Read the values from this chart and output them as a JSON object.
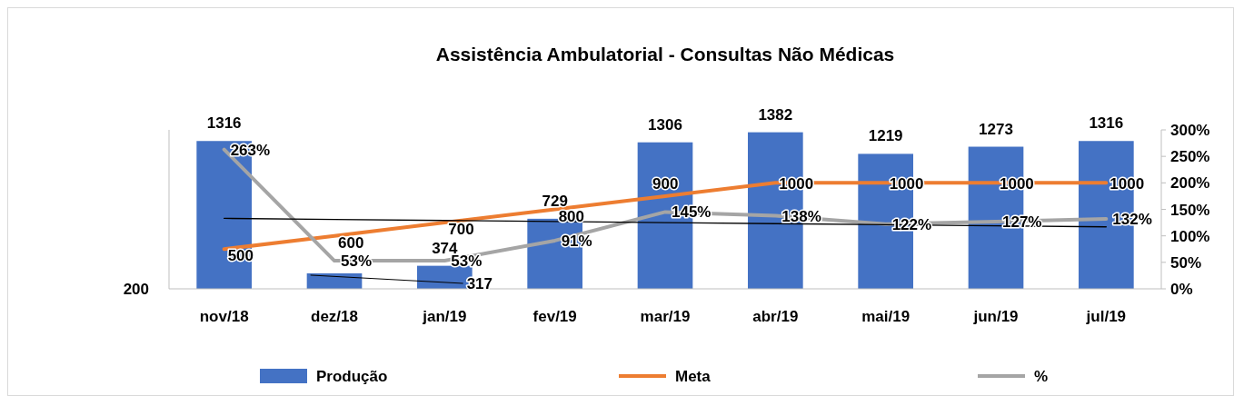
{
  "chart_data": {
    "type": "bar",
    "title": "Assistência Ambulatorial - Consultas Não Médicas",
    "categories": [
      "nov/18",
      "dez/18",
      "jan/19",
      "fev/19",
      "mar/19",
      "abr/19",
      "mai/19",
      "jun/19",
      "jul/19"
    ],
    "series": [
      {
        "name": "Produção",
        "color": "#4472c4",
        "values": [
          1316,
          317,
          374,
          729,
          1306,
          1382,
          1219,
          1273,
          1316
        ],
        "value_labels": [
          "1316",
          "317",
          "374",
          "729",
          "1306",
          "1382",
          "1219",
          "1273",
          "1316"
        ]
      },
      {
        "name": "Meta",
        "type": "line",
        "color": "#ed7d31",
        "values": [
          500,
          600,
          700,
          800,
          900,
          1000,
          1000,
          1000,
          1000
        ],
        "value_labels": [
          "500",
          "600",
          "700",
          "800",
          "900",
          "1000",
          "1000",
          "1000",
          "1000"
        ]
      },
      {
        "name": "%",
        "type": "line",
        "axis": "y2",
        "color": "#a5a5a5",
        "values": [
          263,
          53,
          53,
          91,
          145,
          138,
          122,
          127,
          132
        ],
        "value_labels": [
          "263%",
          "53%",
          "53%",
          "91%",
          "145%",
          "138%",
          "122%",
          "127%",
          "132%"
        ]
      },
      {
        "type": "line",
        "axis": "y2",
        "color": "#000000",
        "values": [
          133,
          131,
          129,
          127,
          125,
          123,
          121,
          119,
          117
        ]
      }
    ],
    "ylim": [
      200,
      1400
    ],
    "annotations": [
      "200"
    ],
    "y2lim": [
      0,
      300
    ],
    "y2ticks": [
      {
        "value": 0,
        "label": "0%"
      },
      {
        "value": 50,
        "label": "50%"
      },
      {
        "value": 100,
        "label": "100%"
      },
      {
        "value": 150,
        "label": "150%"
      },
      {
        "value": 200,
        "label": "200%"
      },
      {
        "value": 250,
        "label": "250%"
      },
      {
        "value": 300,
        "label": "300%"
      }
    ],
    "legend": "bottom",
    "marker": "none"
  }
}
